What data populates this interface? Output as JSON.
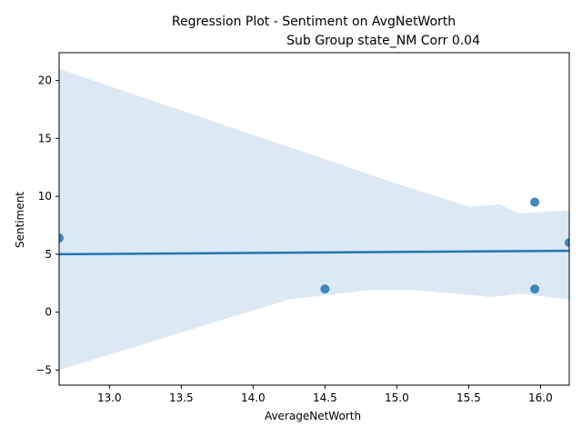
{
  "chart_data": {
    "type": "scatter",
    "title_line1": "Regression Plot - Sentiment on AvgNetWorth",
    "title_line2": "Sub Group state_NM Corr 0.04",
    "xlabel": "AverageNetWorth",
    "ylabel": "Sentiment",
    "xlim": [
      12.65,
      16.2
    ],
    "ylim": [
      -6.3,
      22.4
    ],
    "x_ticks": [
      13.0,
      13.5,
      14.0,
      14.5,
      15.0,
      15.5,
      16.0
    ],
    "x_tick_labels": [
      "13.0",
      "13.5",
      "14.0",
      "14.5",
      "15.0",
      "15.5",
      "16.0"
    ],
    "y_ticks": [
      -5,
      0,
      5,
      10,
      15,
      20
    ],
    "y_tick_labels": [
      "−5",
      "0",
      "5",
      "10",
      "15",
      "20"
    ],
    "points": [
      {
        "x": 12.65,
        "y": 6.4
      },
      {
        "x": 14.5,
        "y": 2.0
      },
      {
        "x": 15.96,
        "y": 9.5
      },
      {
        "x": 15.96,
        "y": 2.0
      },
      {
        "x": 16.2,
        "y": 6.0
      }
    ],
    "regression_line": [
      {
        "x": 12.65,
        "y": 5.0
      },
      {
        "x": 16.2,
        "y": 5.3
      }
    ],
    "confidence_band_upper": [
      {
        "x": 12.65,
        "y": 21.0
      },
      {
        "x": 14.0,
        "y": 15.3
      },
      {
        "x": 15.0,
        "y": 11.1
      },
      {
        "x": 15.5,
        "y": 9.1
      },
      {
        "x": 15.72,
        "y": 9.3
      },
      {
        "x": 15.85,
        "y": 8.5
      },
      {
        "x": 16.2,
        "y": 8.8
      }
    ],
    "confidence_band_lower": [
      {
        "x": 16.2,
        "y": 1.1
      },
      {
        "x": 15.85,
        "y": 1.6
      },
      {
        "x": 15.65,
        "y": 1.3
      },
      {
        "x": 15.5,
        "y": 1.5
      },
      {
        "x": 15.12,
        "y": 1.9
      },
      {
        "x": 14.8,
        "y": 1.9
      },
      {
        "x": 14.25,
        "y": 1.1
      },
      {
        "x": 12.65,
        "y": -5.0
      }
    ],
    "colors": {
      "points": "#1f77b4",
      "line": "#1f77b4",
      "band": "#dce8f4"
    },
    "grid": false,
    "legend": "none"
  }
}
